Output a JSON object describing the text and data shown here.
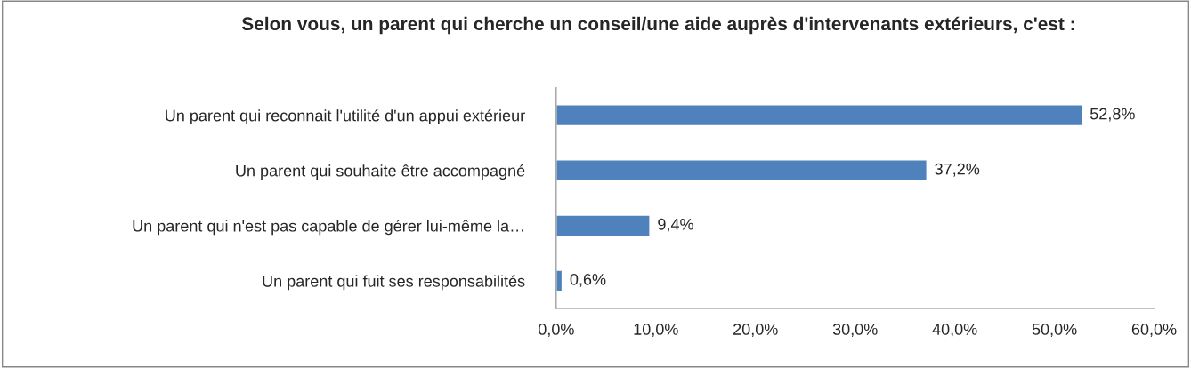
{
  "chart_data": {
    "type": "bar",
    "orientation": "horizontal",
    "title": "Selon vous, un parent qui cherche un conseil/une aide auprès d'intervenants extérieurs, c'est :",
    "categories": [
      "Un parent qui reconnait l'utilité d'un appui extérieur",
      "Un parent qui souhaite être accompagné",
      "Un parent qui n'est pas capable de gérer lui-même la…",
      "Un parent qui fuit ses responsabilités"
    ],
    "values": [
      52.8,
      37.2,
      9.4,
      0.6
    ],
    "value_labels": [
      "52,8%",
      "37,2%",
      "9,4%",
      "0,6%"
    ],
    "color": "#4f81bd",
    "xlim": [
      0,
      60
    ],
    "xticks": [
      {
        "value": 0,
        "label": "0,0%"
      },
      {
        "value": 10,
        "label": "10,0%"
      },
      {
        "value": 20,
        "label": "20,0%"
      },
      {
        "value": 30,
        "label": "30,0%"
      },
      {
        "value": 40,
        "label": "40,0%"
      },
      {
        "value": 50,
        "label": "50,0%"
      },
      {
        "value": 60,
        "label": "60,0%"
      }
    ],
    "grid": false,
    "legend": false
  }
}
